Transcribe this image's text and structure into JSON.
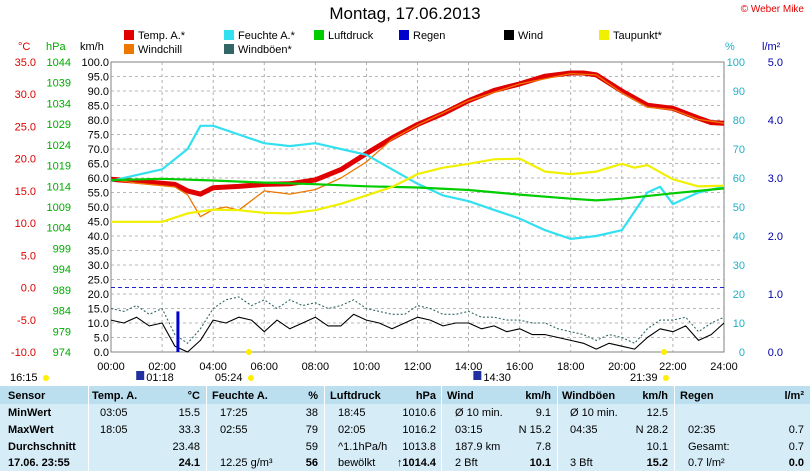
{
  "title": "Montag, 17.06.2013",
  "copyright": "© Weber Mike",
  "legend": [
    {
      "label": "Temp. A.*",
      "color": "#e00000"
    },
    {
      "label": "Feuchte A.*",
      "color": "#33e0f0"
    },
    {
      "label": "Luftdruck",
      "color": "#00cc00"
    },
    {
      "label": "Regen",
      "color": "#0000cc"
    },
    {
      "label": "Wind",
      "color": "#000000"
    },
    {
      "label": "Taupunkt*",
      "color": "#f0f000"
    },
    {
      "label": "Windchill",
      "color": "#ee7700"
    },
    {
      "label": "Windböen*",
      "color": "#336666"
    }
  ],
  "axis_units": {
    "temp": "°C",
    "pressure": "hPa",
    "wind": "km/h",
    "humidity": "%",
    "rain": "l/m²"
  },
  "sun": {
    "sunrise": "05:24",
    "sunset": "21:39",
    "moon_rise": "01:18",
    "moon_set": "14:30",
    "dawn": "16:15"
  },
  "chart_data": {
    "type": "line",
    "title": "Montag, 17.06.2013",
    "x_ticks": [
      "00:00",
      "02:00",
      "04:00",
      "06:00",
      "08:00",
      "10:00",
      "12:00",
      "14:00",
      "16:00",
      "18:00",
      "20:00",
      "22:00",
      "24:00"
    ],
    "xlim": [
      0,
      24
    ],
    "axes": {
      "temp": {
        "ticks": [
          "35.0",
          "30.0",
          "25.0",
          "20.0",
          "15.0",
          "10.0",
          "5.0",
          "0.0",
          "-5.0",
          "-10.0"
        ],
        "ylim": [
          -10,
          35
        ]
      },
      "pressure": {
        "ticks": [
          "1044",
          "1039",
          "1034",
          "1029",
          "1024",
          "1019",
          "1014",
          "1009",
          "1004",
          "999",
          "994",
          "989",
          "984",
          "979",
          "974"
        ],
        "ylim": [
          974,
          1044
        ]
      },
      "wind": {
        "ticks": [
          "100.0",
          "95.0",
          "90.0",
          "85.0",
          "80.0",
          "75.0",
          "70.0",
          "65.0",
          "60.0",
          "55.0",
          "50.0",
          "45.0",
          "40.0",
          "35.0",
          "30.0",
          "25.0",
          "20.0",
          "15.0",
          "10.0",
          "5.0",
          "0.0"
        ],
        "ylim": [
          0,
          100
        ]
      },
      "humidity": {
        "ticks": [
          "100",
          "90",
          "80",
          "70",
          "60",
          "50",
          "40",
          "30",
          "20",
          "10",
          "0"
        ],
        "ylim": [
          0,
          100
        ]
      },
      "rain": {
        "ticks": [
          "5.0",
          "4.0",
          "3.0",
          "2.0",
          "1.0",
          "0.0"
        ],
        "ylim": [
          0,
          5
        ]
      }
    },
    "series": [
      {
        "name": "Temp. A.*",
        "axis": "temp",
        "color": "#e00000",
        "x": [
          0,
          1,
          2,
          2.5,
          3,
          3.5,
          4,
          5,
          6,
          7,
          8,
          9,
          10,
          11,
          12,
          13,
          14,
          15,
          16,
          17,
          18,
          18.5,
          19,
          20,
          21,
          22,
          23,
          23.5,
          24
        ],
        "y": [
          16.8,
          16.5,
          16.2,
          16.0,
          15.0,
          14.5,
          15.5,
          15.7,
          16.0,
          16.1,
          16.7,
          18.3,
          20.8,
          23.2,
          25.3,
          27.0,
          29.0,
          30.6,
          31.6,
          32.8,
          33.3,
          33.3,
          33.0,
          30.5,
          28.3,
          27.8,
          26.3,
          25.6,
          25.5
        ]
      },
      {
        "name": "Windchill",
        "axis": "temp",
        "color": "#ee7700",
        "x": [
          0,
          1,
          2,
          2.5,
          3,
          3.5,
          4,
          4.5,
          5,
          6,
          7,
          8,
          9,
          10,
          11,
          12,
          14,
          16,
          18,
          19,
          20,
          21,
          22,
          23,
          24
        ],
        "y": [
          16.8,
          16.2,
          15.8,
          15.6,
          14.4,
          11.0,
          12.1,
          12.5,
          12.0,
          15.0,
          14.5,
          15.2,
          17.0,
          19.5,
          23.0,
          25.2,
          29.0,
          31.6,
          33.2,
          33.0,
          30.2,
          28.0,
          27.6,
          26.1,
          25.5
        ]
      },
      {
        "name": "Feuchte A.*",
        "axis": "humidity",
        "color": "#33e0f0",
        "x": [
          0,
          1,
          2,
          3,
          3.5,
          4,
          5,
          6,
          7,
          8,
          9,
          10,
          11,
          12,
          13,
          14,
          15,
          16,
          17,
          18,
          19,
          20,
          21,
          21.5,
          22,
          22.5,
          23,
          24
        ],
        "y": [
          59,
          61,
          63,
          70,
          78,
          78,
          75,
          72,
          71,
          72,
          70,
          68,
          63,
          58,
          54,
          52,
          49,
          46,
          42,
          39,
          40,
          42,
          55,
          57,
          51,
          53,
          55,
          57
        ]
      },
      {
        "name": "Luftdruck",
        "axis": "pressure",
        "color": "#00cc00",
        "x": [
          0,
          2,
          4,
          6,
          8,
          10,
          12,
          14,
          16,
          18,
          19,
          20,
          22,
          24
        ],
        "y": [
          1015.5,
          1015.8,
          1015.4,
          1014.9,
          1014.5,
          1014.0,
          1013.7,
          1013.1,
          1012.0,
          1011.0,
          1010.6,
          1011.0,
          1012.3,
          1013.5
        ]
      },
      {
        "name": "Taupunkt*",
        "axis": "temp",
        "color": "#f0f000",
        "x": [
          0,
          1,
          2,
          3,
          4,
          5,
          6,
          7,
          8,
          9,
          10,
          11,
          12,
          13,
          14,
          15,
          16,
          17,
          18,
          19,
          20,
          20.5,
          21,
          22,
          23,
          24
        ],
        "y": [
          10.2,
          10.2,
          10.2,
          11.5,
          12.1,
          12.0,
          11.6,
          11.5,
          12.0,
          13.0,
          14.3,
          15.6,
          17.6,
          18.6,
          19.2,
          19.9,
          20.0,
          18.0,
          17.6,
          18.0,
          19.2,
          18.6,
          19.0,
          16.8,
          15.7,
          15.8
        ]
      },
      {
        "name": "Wind",
        "axis": "wind",
        "color": "#000000",
        "x": [
          0,
          0.5,
          1,
          1.5,
          2,
          2.5,
          3,
          3.5,
          4,
          4.5,
          5,
          5.5,
          6,
          6.5,
          7,
          7.5,
          8,
          8.5,
          9,
          9.5,
          10,
          10.5,
          11,
          11.5,
          12,
          12.5,
          13,
          13.5,
          14,
          14.5,
          15,
          15.5,
          16,
          16.5,
          17,
          17.5,
          18,
          18.5,
          19,
          19.5,
          20,
          20.5,
          21,
          21.5,
          22,
          22.5,
          23,
          23.5,
          24
        ],
        "y": [
          11,
          10,
          12,
          9,
          10,
          2,
          0,
          4,
          11,
          10,
          12,
          11,
          7,
          11,
          8,
          10,
          12,
          9,
          9,
          13,
          11,
          10,
          8,
          10,
          12,
          11,
          9,
          10,
          10,
          8,
          9,
          7,
          8,
          6,
          6,
          5,
          4,
          3,
          1,
          3,
          2,
          1,
          5,
          8,
          7,
          9,
          4,
          6,
          10
        ]
      },
      {
        "name": "Windböen*",
        "axis": "wind",
        "color": "#336666",
        "x": [
          0,
          0.5,
          1,
          1.5,
          2,
          2.5,
          3,
          3.5,
          4,
          4.5,
          5,
          5.5,
          6,
          6.5,
          7,
          7.5,
          8,
          8.5,
          9,
          9.5,
          10,
          10.5,
          11,
          11.5,
          12,
          12.5,
          13,
          13.5,
          14,
          14.5,
          15,
          15.5,
          16,
          16.5,
          17,
          17.5,
          18,
          18.5,
          19,
          19.5,
          20,
          20.5,
          21,
          21.5,
          22,
          22.5,
          23,
          23.5,
          24
        ],
        "y": [
          15,
          14,
          16,
          13,
          15,
          6,
          3,
          8,
          15,
          18,
          19,
          16,
          18,
          15,
          18,
          16,
          17,
          15,
          16,
          18,
          15,
          14,
          13,
          13,
          16,
          15,
          13,
          13,
          14,
          12,
          12,
          11,
          11,
          10,
          10,
          8,
          7,
          6,
          4,
          6,
          5,
          3,
          8,
          11,
          11,
          12,
          7,
          10,
          12
        ]
      },
      {
        "name": "Regen",
        "axis": "rain",
        "color": "#0000cc",
        "type": "bar",
        "x": [
          2.62
        ],
        "y": [
          0.7
        ]
      }
    ]
  },
  "table": {
    "headers": [
      "Sensor",
      "Temp. A.",
      "°C",
      "Feuchte A.",
      "%",
      "Luftdruck",
      "hPa",
      "Wind",
      "km/h",
      "Windböen",
      "km/h",
      "Regen",
      "l/m²"
    ],
    "rows": [
      {
        "label": "MinWert",
        "cells": [
          "03:05",
          "15.5",
          "17:25",
          "38",
          "18:45",
          "1010.6",
          "Ø 10 min.",
          "9.1",
          "Ø 10 min.",
          "12.5",
          "",
          ""
        ]
      },
      {
        "label": "MaxWert",
        "cells": [
          "18:05",
          "33.3",
          "02:55",
          "79",
          "02:05",
          "1016.2",
          "03:15",
          "N 15.2",
          "04:35",
          "N 28.2",
          "02:35",
          "0.7"
        ]
      },
      {
        "label": "Durchschnitt",
        "cells": [
          "",
          "23.48",
          "",
          "59",
          "^1.1hPa/h",
          "1013.8",
          "187.9 km",
          "7.8",
          "",
          "10.1",
          "Gesamt:",
          "0.7"
        ]
      },
      {
        "label": "17.06. 23:55",
        "cells": [
          "",
          "24.1",
          "12.25 g/m³",
          "56",
          "bewölkt",
          "↑1014.4",
          "2 Bft",
          "10.1",
          "3 Bft",
          "15.2",
          "0.7 l/m²",
          "0.0"
        ]
      }
    ]
  }
}
